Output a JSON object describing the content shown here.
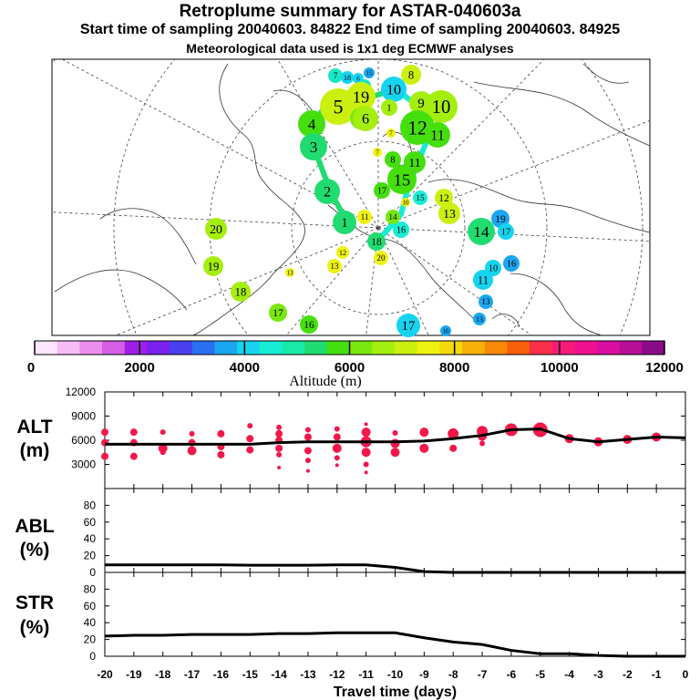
{
  "header": {
    "title": "Retroplume summary for ASTAR-040603a",
    "sampling": "Start time of sampling 20040603. 84822     End time of sampling 20040603. 84925",
    "met": "Meteorological data used is 1x1 deg ECMWF analyses"
  },
  "colorbar": {
    "label": "Altitude (m)",
    "tick_labels": [
      "0",
      "2000",
      "4000",
      "6000",
      "8000",
      "10000",
      "12000"
    ],
    "colors": [
      "#fde6fd",
      "#f6bcf6",
      "#ed8ded",
      "#d45ee6",
      "#9f1fe6",
      "#7a21f0",
      "#4a3ff0",
      "#2a6ff0",
      "#1aa7f0",
      "#16d4f0",
      "#17ecd4",
      "#18eaa8",
      "#20dc70",
      "#46df0e",
      "#79e80e",
      "#a4ee10",
      "#cbf010",
      "#eef20f",
      "#f5d90c",
      "#f7b10a",
      "#f88a0a",
      "#f8600a",
      "#f8304a",
      "#f81a78",
      "#f0108f",
      "#d90ea0",
      "#b80e98",
      "#8a0a8a"
    ]
  },
  "chart_data": [
    {
      "type": "scatter",
      "panel": "ALT",
      "ylabel_line1": "ALT",
      "ylabel_line2": "(m)",
      "ylim": [
        0,
        12000
      ],
      "yticks": [
        "3000",
        "6000",
        "9000",
        "12000"
      ],
      "xlim": [
        -20,
        0
      ],
      "mean_line": [
        [
          -20,
          5500
        ],
        [
          -19,
          5500
        ],
        [
          -18,
          5500
        ],
        [
          -17,
          5500
        ],
        [
          -16,
          5500
        ],
        [
          -15,
          5500
        ],
        [
          -14,
          5700
        ],
        [
          -13,
          5800
        ],
        [
          -12,
          5800
        ],
        [
          -11,
          5800
        ],
        [
          -10,
          5800
        ],
        [
          -9,
          5900
        ],
        [
          -8,
          6200
        ],
        [
          -7,
          6600
        ],
        [
          -6,
          7300
        ],
        [
          -5,
          7400
        ],
        [
          -4,
          6200
        ],
        [
          -3,
          5800
        ],
        [
          -2,
          6100
        ],
        [
          -1,
          6400
        ],
        [
          0,
          6300
        ]
      ],
      "clusters": [
        {
          "x": -20,
          "y": [
            7000,
            5700,
            4000
          ],
          "r": [
            4,
            4,
            4
          ]
        },
        {
          "x": -19,
          "y": [
            7000,
            5700,
            4000
          ],
          "r": [
            4,
            4,
            4
          ]
        },
        {
          "x": -18,
          "y": [
            7000,
            5000,
            4500
          ],
          "r": [
            3,
            5,
            3
          ]
        },
        {
          "x": -17,
          "y": [
            6800,
            5700,
            4700
          ],
          "r": [
            3,
            4,
            5
          ]
        },
        {
          "x": -16,
          "y": [
            6800,
            5200,
            4200
          ],
          "r": [
            4,
            4,
            4
          ]
        },
        {
          "x": -15,
          "y": [
            7800,
            6200,
            4800
          ],
          "r": [
            3,
            4,
            4
          ]
        },
        {
          "x": -14,
          "y": [
            7600,
            6800,
            6000,
            5000,
            4200,
            2600
          ],
          "r": [
            3,
            4,
            4,
            4,
            3,
            2
          ]
        },
        {
          "x": -13,
          "y": [
            7300,
            6400,
            4700,
            3500,
            2200
          ],
          "r": [
            3,
            4,
            4,
            3,
            2
          ]
        },
        {
          "x": -12,
          "y": [
            7400,
            6400,
            5000,
            3800,
            2900
          ],
          "r": [
            3,
            4,
            5,
            3,
            2
          ]
        },
        {
          "x": -11,
          "y": [
            8000,
            7000,
            5800,
            4500,
            3000,
            2000
          ],
          "r": [
            2,
            5,
            6,
            5,
            3,
            2
          ]
        },
        {
          "x": -10,
          "y": [
            6900,
            5600,
            4500
          ],
          "r": [
            3,
            5,
            5
          ]
        },
        {
          "x": -9,
          "y": [
            7000,
            5000
          ],
          "r": [
            5,
            5
          ]
        },
        {
          "x": -8,
          "y": [
            6800,
            5000
          ],
          "r": [
            6,
            4
          ]
        },
        {
          "x": -7,
          "y": [
            7100,
            6500,
            5600
          ],
          "r": [
            6,
            5,
            3
          ]
        },
        {
          "x": -6,
          "y": [
            7300
          ],
          "r": [
            7
          ]
        },
        {
          "x": -5,
          "y": [
            7300
          ],
          "r": [
            8
          ]
        },
        {
          "x": -4,
          "y": [
            6200
          ],
          "r": [
            5
          ]
        },
        {
          "x": -3,
          "y": [
            5800
          ],
          "r": [
            5
          ]
        },
        {
          "x": -2,
          "y": [
            6100
          ],
          "r": [
            5
          ]
        },
        {
          "x": -1,
          "y": [
            6400
          ],
          "r": [
            5
          ]
        }
      ]
    },
    {
      "type": "line",
      "panel": "ABL",
      "ylabel_line1": "ABL",
      "ylabel_line2": "(%)",
      "ylim": [
        0,
        100
      ],
      "yticks": [
        "0",
        "20",
        "40",
        "60",
        "80"
      ],
      "xlim": [
        -20,
        0
      ],
      "x": [
        -20,
        -19,
        -18,
        -17,
        -16,
        -15,
        -14,
        -13,
        -12,
        -11,
        -10,
        -9,
        -8,
        -7,
        -6,
        -5,
        -4,
        -3,
        -2,
        -1,
        0
      ],
      "values": [
        9,
        9,
        9,
        9,
        9,
        8.5,
        8.5,
        8.5,
        9,
        9,
        6,
        1,
        0,
        0,
        0,
        0,
        0,
        0,
        0,
        0,
        0
      ]
    },
    {
      "type": "line",
      "panel": "STR",
      "ylabel_line1": "STR",
      "ylabel_line2": "(%)",
      "ylim": [
        0,
        100
      ],
      "yticks": [
        "0",
        "20",
        "40",
        "60",
        "80"
      ],
      "xlim": [
        -20,
        0
      ],
      "x": [
        -20,
        -19,
        -18,
        -17,
        -16,
        -15,
        -14,
        -13,
        -12,
        -11,
        -10,
        -9,
        -8,
        -7,
        -6,
        -5,
        -4,
        -3,
        -2,
        -1,
        0
      ],
      "values": [
        24,
        25,
        25,
        26,
        26,
        26,
        27,
        27,
        28,
        28,
        28,
        22,
        17,
        14,
        7,
        3,
        3,
        1,
        0,
        0,
        0
      ],
      "xlabel": "Travel time (days)",
      "xtick_labels": [
        "-20",
        "-19",
        "-18",
        "-17",
        "-16",
        "-15",
        "-14",
        "-13",
        "-12",
        "-11",
        "-10",
        "-9",
        "-8",
        "-7",
        "-6",
        "-5",
        "-4",
        "-3",
        "-2",
        "-1",
        "0"
      ]
    }
  ],
  "map": {
    "markers": [
      {
        "label": "7",
        "color": "#17e8c4",
        "size": 8
      },
      {
        "label": "18",
        "color": "#16d4f0",
        "size": 7
      },
      {
        "label": "6",
        "color": "#16d4f0",
        "size": 6
      },
      {
        "label": "19",
        "color": "#17e8c4",
        "size": 7
      },
      {
        "label": "15",
        "color": "#1aa7f0",
        "size": 6
      },
      {
        "label": "8",
        "color": "#cbf010",
        "size": 11
      },
      {
        "label": "5",
        "color": "#cbf010",
        "size": 20
      },
      {
        "label": "19",
        "color": "#cbf010",
        "size": 16
      },
      {
        "label": "8",
        "color": "#79e80e",
        "size": 12
      },
      {
        "label": "10",
        "color": "#16d4f0",
        "size": 14
      },
      {
        "label": "1",
        "color": "#a4ee10",
        "size": 9
      },
      {
        "label": "9",
        "color": "#a4ee10",
        "size": 13
      },
      {
        "label": "10",
        "color": "#a4ee10",
        "size": 18
      },
      {
        "label": "4",
        "color": "#46df0e",
        "size": 15
      },
      {
        "label": "6",
        "color": "#a4ee10",
        "size": 14
      },
      {
        "label": "7",
        "color": "#eef20f",
        "size": 5
      },
      {
        "label": "12",
        "color": "#46df0e",
        "size": 19
      },
      {
        "label": "11",
        "color": "#46df0e",
        "size": 14
      },
      {
        "label": "3",
        "color": "#20dc70",
        "size": 15
      },
      {
        "label": "7",
        "color": "#eef20f",
        "size": 5
      },
      {
        "label": "8",
        "color": "#46df0e",
        "size": 9
      },
      {
        "label": "11",
        "color": "#46df0e",
        "size": 12
      },
      {
        "label": "15",
        "color": "#46df0e",
        "size": 16
      },
      {
        "label": "17",
        "color": "#46df0e",
        "size": 9
      },
      {
        "label": "10",
        "color": "#eef20f",
        "size": 5
      },
      {
        "label": "15",
        "color": "#17ecd4",
        "size": 8
      },
      {
        "label": "12",
        "color": "#cbf010",
        "size": 10
      },
      {
        "label": "2",
        "color": "#20dc70",
        "size": 14
      },
      {
        "label": "14",
        "color": "#79e80e",
        "size": 8
      },
      {
        "label": "13",
        "color": "#cbf010",
        "size": 12
      },
      {
        "label": "19",
        "color": "#1aa7f0",
        "size": 10
      },
      {
        "label": "14",
        "color": "#20dc70",
        "size": 15
      },
      {
        "label": "17",
        "color": "#16d4f0",
        "size": 9
      },
      {
        "label": "20",
        "color": "#a4ee10",
        "size": 12
      },
      {
        "label": "11",
        "color": "#eef20f",
        "size": 8
      },
      {
        "label": "1",
        "color": "#20dc70",
        "size": 13
      },
      {
        "label": "16",
        "color": "#17ecd4",
        "size": 9
      },
      {
        "label": "18",
        "color": "#20dc70",
        "size": 10
      },
      {
        "label": "12",
        "color": "#eef20f",
        "size": 7
      },
      {
        "label": "20",
        "color": "#eef20f",
        "size": 8
      },
      {
        "label": "16",
        "color": "#1aa7f0",
        "size": 9
      },
      {
        "label": "10",
        "color": "#16d4f0",
        "size": 9
      },
      {
        "label": "19",
        "color": "#a4ee10",
        "size": 11
      },
      {
        "label": "13",
        "color": "#eef20f",
        "size": 8
      },
      {
        "label": "13",
        "color": "#eef20f",
        "size": 5
      },
      {
        "label": "11",
        "color": "#16d4f0",
        "size": 11
      },
      {
        "label": "18",
        "color": "#a4ee10",
        "size": 11
      },
      {
        "label": "13",
        "color": "#1aa7f0",
        "size": 8
      },
      {
        "label": "13",
        "color": "#1aa7f0",
        "size": 7
      },
      {
        "label": "17",
        "color": "#79e80e",
        "size": 10
      },
      {
        "label": "16",
        "color": "#46df0e",
        "size": 10
      },
      {
        "label": "17",
        "color": "#16d4f0",
        "size": 13
      },
      {
        "label": "16",
        "color": "#1aa7f0",
        "size": 6
      }
    ]
  }
}
